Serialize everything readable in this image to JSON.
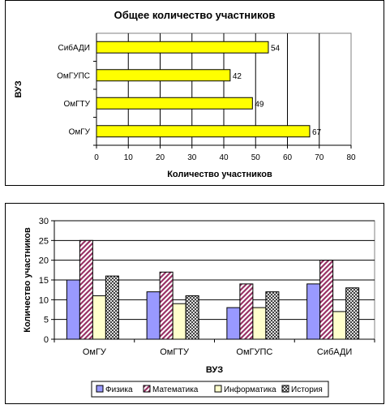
{
  "chart_data": [
    {
      "type": "bar",
      "orientation": "horizontal",
      "title": "Общее количество участников",
      "xlabel": "Количество участников",
      "ylabel": "ВУЗ",
      "categories": [
        "ОмГУ",
        "ОмГТУ",
        "ОмГУПС",
        "СибАДИ"
      ],
      "values": [
        67,
        49,
        42,
        54
      ],
      "xlim": [
        0,
        80
      ],
      "ticks": [
        "0",
        "10",
        "20",
        "30",
        "40",
        "50",
        "60",
        "70",
        "80"
      ],
      "grid": "vertical",
      "bar_color": "#ffff00",
      "data_labels": true
    },
    {
      "type": "bar",
      "orientation": "vertical",
      "xlabel": "ВУЗ",
      "ylabel": "Количество участников",
      "categories": [
        "ОмГУ",
        "ОмГТУ",
        "ОмГУПС",
        "СибАДИ"
      ],
      "ylim": [
        0,
        30
      ],
      "ticks": [
        "0",
        "5",
        "10",
        "15",
        "20",
        "25",
        "30"
      ],
      "grid": "horizontal",
      "legend": "bottom",
      "series": [
        {
          "name": "Физика",
          "values": [
            15,
            12,
            8,
            14
          ],
          "color": "#9999ff",
          "pattern": "solid"
        },
        {
          "name": "Математика",
          "values": [
            25,
            17,
            14,
            20
          ],
          "color": "#993366",
          "pattern": "diagonal"
        },
        {
          "name": "Информатика",
          "values": [
            11,
            9,
            8,
            7
          ],
          "color": "#ffffcc",
          "pattern": "solid"
        },
        {
          "name": "История",
          "values": [
            16,
            11,
            12,
            13
          ],
          "color": "#000000",
          "pattern": "crosshatch"
        }
      ]
    }
  ]
}
